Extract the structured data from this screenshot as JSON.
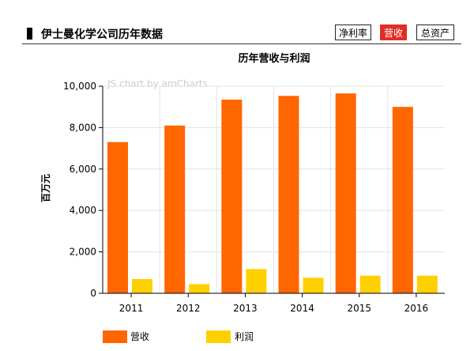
{
  "header": {
    "title": "伊士曼化学公司历年数据",
    "tabs": [
      {
        "label": "净利率",
        "active": false
      },
      {
        "label": "营收",
        "active": true
      },
      {
        "label": "总资产",
        "active": false
      }
    ]
  },
  "watermark": "JS chart by amCharts",
  "colors": {
    "revenue": "#ff6600",
    "profit": "#ffd000",
    "active_tab": "#e02e24"
  },
  "chart_data": {
    "type": "bar",
    "title": "历年营收与利润",
    "ylabel": "百万元",
    "xlabel": "",
    "ylim": [
      0,
      10000
    ],
    "yticks": [
      0,
      2000,
      4000,
      6000,
      8000,
      10000
    ],
    "ytick_labels": [
      "0",
      "2,000",
      "4,000",
      "6,000",
      "8,000",
      "10,000"
    ],
    "categories": [
      "2011",
      "2012",
      "2013",
      "2014",
      "2015",
      "2016"
    ],
    "series": [
      {
        "name": "营收",
        "values": [
          7300,
          8100,
          9350,
          9530,
          9650,
          9000
        ]
      },
      {
        "name": "利润",
        "values": [
          690,
          440,
          1170,
          750,
          850,
          850
        ]
      }
    ],
    "grid": true,
    "legend": "bottom-left"
  }
}
